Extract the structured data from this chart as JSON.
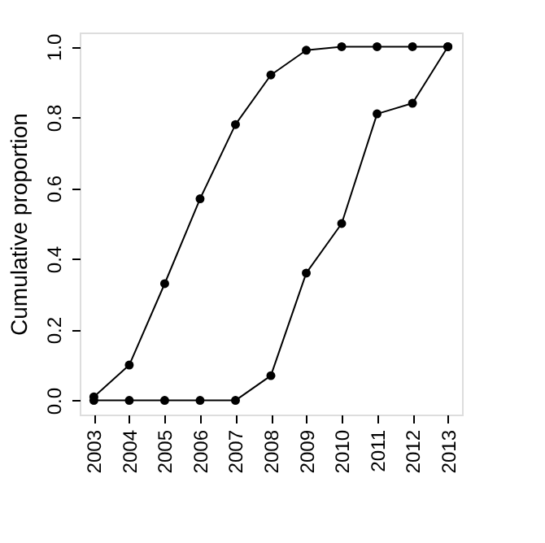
{
  "chart_data": {
    "type": "line",
    "ylabel": "Cumulative proportion",
    "categories": [
      "2003",
      "2004",
      "2005",
      "2006",
      "2007",
      "2008",
      "2009",
      "2010",
      "2011",
      "2012",
      "2013"
    ],
    "series": [
      {
        "color": "#000000",
        "values": [
          0.01,
          0.1,
          0.33,
          0.57,
          0.78,
          0.92,
          0.99,
          1.0,
          1.0,
          1.0,
          1.0
        ]
      },
      {
        "color": "#000000",
        "values": [
          0.0,
          0.0,
          0.0,
          0.0,
          0.0,
          0.07,
          0.36,
          0.5,
          0.81,
          0.84,
          1.0
        ]
      }
    ],
    "ylim": [
      -0.04,
      1.04
    ],
    "yticks": [
      {
        "value": 0,
        "label": "0.0"
      },
      0.2,
      0.4,
      0.6,
      0.8,
      {
        "value": 1,
        "label": "1.0"
      }
    ],
    "grid": false,
    "legend": false,
    "marker": "circle",
    "line_style": "solid"
  }
}
